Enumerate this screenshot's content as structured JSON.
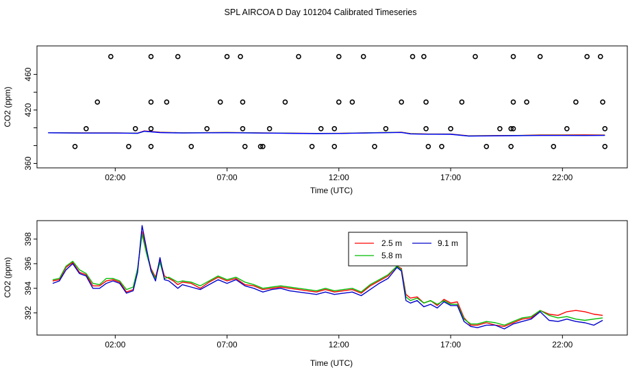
{
  "title": "SPL AIRCOA D  Day 101204  Calibrated Timeseries",
  "chart_data": [
    {
      "type": "scatter",
      "xlabel": "Time (UTC)",
      "ylabel": "CO2 (ppm)",
      "x_unit": "hours UTC",
      "xlim": [
        -1.5,
        24.9
      ],
      "ylim": [
        355,
        492
      ],
      "x_ticks": [
        2,
        7,
        12,
        17,
        22
      ],
      "x_tick_labels": [
        "02:00",
        "07:00",
        "12:00",
        "17:00",
        "22:00"
      ],
      "y_ticks": [
        360,
        380,
        400,
        420,
        440,
        460
      ],
      "y_tick_labels": [
        "360",
        "",
        "",
        "420",
        "",
        "460"
      ],
      "point_color": "#000000",
      "points": [
        [
          1.8,
          480
        ],
        [
          3.6,
          480
        ],
        [
          4.8,
          480
        ],
        [
          7.0,
          480
        ],
        [
          7.6,
          480
        ],
        [
          10.2,
          480
        ],
        [
          12.0,
          480
        ],
        [
          13.1,
          480
        ],
        [
          15.3,
          480
        ],
        [
          15.8,
          480
        ],
        [
          18.1,
          480
        ],
        [
          19.8,
          480
        ],
        [
          21.0,
          480
        ],
        [
          23.1,
          480
        ],
        [
          23.7,
          480
        ],
        [
          1.2,
          429
        ],
        [
          3.6,
          429
        ],
        [
          4.3,
          429
        ],
        [
          6.7,
          429
        ],
        [
          7.7,
          429
        ],
        [
          9.6,
          429
        ],
        [
          12.0,
          429
        ],
        [
          12.6,
          429
        ],
        [
          14.8,
          429
        ],
        [
          15.9,
          429
        ],
        [
          17.5,
          429
        ],
        [
          19.8,
          429
        ],
        [
          20.4,
          429
        ],
        [
          22.6,
          429
        ],
        [
          23.8,
          429
        ],
        [
          0.7,
          399
        ],
        [
          2.9,
          399
        ],
        [
          3.6,
          399
        ],
        [
          6.1,
          399
        ],
        [
          7.7,
          399
        ],
        [
          8.9,
          399
        ],
        [
          11.2,
          399
        ],
        [
          11.8,
          399
        ],
        [
          14.1,
          399
        ],
        [
          15.9,
          399
        ],
        [
          17.0,
          399
        ],
        [
          19.2,
          399
        ],
        [
          19.7,
          399
        ],
        [
          19.8,
          399
        ],
        [
          22.2,
          399
        ],
        [
          23.9,
          399
        ],
        [
          0.2,
          379
        ],
        [
          2.6,
          379
        ],
        [
          3.6,
          379
        ],
        [
          5.4,
          379
        ],
        [
          7.8,
          379
        ],
        [
          8.5,
          379
        ],
        [
          8.6,
          379
        ],
        [
          10.8,
          379
        ],
        [
          11.8,
          379
        ],
        [
          13.6,
          379
        ],
        [
          16.0,
          379
        ],
        [
          16.6,
          379
        ],
        [
          18.6,
          379
        ],
        [
          19.7,
          379
        ],
        [
          21.6,
          379
        ],
        [
          23.9,
          379
        ]
      ],
      "lines": [
        {
          "color": "#ff0000",
          "x": [
            -1.0,
            0.5,
            2.0,
            3.0,
            3.3,
            4.0,
            5.0,
            7.0,
            9.0,
            11.0,
            12.0,
            14.0,
            14.8,
            15.2,
            16.0,
            17.0,
            17.8,
            18.5,
            20.0,
            21.0,
            22.0,
            23.0,
            23.9
          ],
          "values": [
            394.5,
            394.3,
            394.3,
            394.0,
            396.5,
            395.0,
            394.4,
            394.8,
            394.2,
            393.7,
            393.8,
            394.7,
            395.0,
            393.5,
            393.0,
            393.0,
            391.0,
            391.2,
            391.4,
            392.0,
            392.0,
            392.1,
            391.9
          ]
        },
        {
          "color": "#00bb00",
          "x": [
            -1.0,
            0.5,
            2.0,
            3.0,
            3.3,
            4.0,
            5.0,
            7.0,
            9.0,
            11.0,
            12.0,
            14.0,
            14.8,
            15.2,
            16.0,
            17.0,
            17.8,
            18.5,
            20.0,
            21.0,
            22.0,
            23.0,
            23.9
          ],
          "values": [
            394.4,
            394.2,
            394.2,
            393.9,
            396.0,
            394.8,
            394.3,
            394.6,
            394.1,
            393.6,
            393.7,
            394.6,
            394.9,
            393.3,
            392.9,
            392.9,
            390.8,
            391.0,
            391.3,
            391.6,
            391.6,
            391.5,
            391.6
          ]
        },
        {
          "color": "#0000ff",
          "x": [
            -1.0,
            0.5,
            2.0,
            3.0,
            3.3,
            4.0,
            5.0,
            7.0,
            9.0,
            11.0,
            12.0,
            14.0,
            14.8,
            15.2,
            16.0,
            17.0,
            17.8,
            18.5,
            20.0,
            21.0,
            22.0,
            23.0,
            23.9
          ],
          "values": [
            394.4,
            394.1,
            394.1,
            393.8,
            396.2,
            394.6,
            394.2,
            394.5,
            394.0,
            393.5,
            393.6,
            394.5,
            394.8,
            393.2,
            392.8,
            392.7,
            390.7,
            390.9,
            391.2,
            391.4,
            391.4,
            391.3,
            391.5
          ]
        }
      ]
    },
    {
      "type": "line",
      "xlabel": "Time (UTC)",
      "ylabel": "CO2 (ppm)",
      "x_unit": "hours UTC",
      "xlim": [
        -1.5,
        24.9
      ],
      "ylim": [
        390.2,
        399.5
      ],
      "x_ticks": [
        2,
        7,
        12,
        17,
        22
      ],
      "x_tick_labels": [
        "02:00",
        "07:00",
        "12:00",
        "17:00",
        "22:00"
      ],
      "y_ticks": [
        392,
        394,
        396,
        398
      ],
      "y_tick_labels": [
        "392",
        "394",
        "396",
        "398"
      ],
      "legend": {
        "position": "top-center",
        "columns": 2
      },
      "x": [
        -0.8,
        -0.5,
        -0.2,
        0.1,
        0.4,
        0.7,
        1.0,
        1.3,
        1.6,
        1.9,
        2.2,
        2.5,
        2.8,
        3.0,
        3.2,
        3.4,
        3.6,
        3.8,
        4.0,
        4.2,
        4.4,
        4.6,
        4.8,
        5.0,
        5.4,
        5.8,
        6.2,
        6.6,
        7.0,
        7.4,
        7.8,
        8.2,
        8.6,
        9.0,
        9.4,
        9.8,
        10.2,
        10.6,
        11.0,
        11.4,
        11.8,
        12.2,
        12.6,
        13.0,
        13.4,
        13.8,
        14.2,
        14.6,
        14.8,
        15.0,
        15.2,
        15.5,
        15.8,
        16.1,
        16.4,
        16.7,
        17.0,
        17.3,
        17.6,
        17.9,
        18.2,
        18.6,
        19.0,
        19.4,
        19.8,
        20.2,
        20.6,
        21.0,
        21.4,
        21.8,
        22.2,
        22.6,
        23.0,
        23.4,
        23.8
      ],
      "series": [
        {
          "name": "2.5 m",
          "color": "#ff0000",
          "values": [
            394.6,
            394.7,
            395.7,
            396.1,
            395.3,
            395.1,
            394.2,
            394.2,
            394.6,
            394.7,
            394.5,
            393.7,
            393.9,
            395.5,
            398.6,
            397.0,
            395.6,
            394.9,
            396.3,
            395.0,
            394.8,
            394.6,
            394.3,
            394.5,
            394.4,
            394.0,
            394.5,
            394.9,
            394.6,
            394.8,
            394.3,
            394.2,
            393.9,
            394.0,
            394.1,
            394.0,
            393.9,
            393.8,
            393.7,
            393.9,
            393.7,
            393.8,
            393.9,
            393.6,
            394.2,
            394.6,
            395.0,
            395.8,
            395.6,
            393.5,
            393.2,
            393.3,
            392.8,
            393.0,
            392.6,
            393.1,
            392.8,
            392.9,
            391.6,
            391.0,
            391.0,
            391.2,
            391.0,
            390.9,
            391.2,
            391.5,
            391.6,
            392.2,
            391.9,
            391.8,
            392.1,
            392.2,
            392.1,
            391.9,
            391.8
          ]
        },
        {
          "name": "5.8 m",
          "color": "#00bb00",
          "values": [
            394.7,
            394.8,
            395.8,
            396.2,
            395.5,
            395.2,
            394.4,
            394.3,
            394.8,
            394.8,
            394.6,
            393.9,
            394.1,
            395.6,
            398.4,
            396.8,
            395.5,
            394.8,
            396.1,
            394.8,
            394.9,
            394.7,
            394.5,
            394.6,
            394.5,
            394.2,
            394.6,
            395.0,
            394.7,
            394.9,
            394.5,
            394.3,
            394.0,
            394.1,
            394.2,
            394.1,
            394.0,
            393.9,
            393.8,
            394.0,
            393.8,
            393.9,
            394.0,
            393.7,
            394.3,
            394.7,
            395.1,
            395.8,
            395.5,
            393.3,
            393.0,
            393.2,
            392.8,
            393.0,
            392.7,
            393.0,
            392.7,
            392.7,
            391.5,
            391.1,
            391.1,
            391.3,
            391.2,
            391.0,
            391.3,
            391.6,
            391.7,
            392.2,
            391.8,
            391.6,
            391.7,
            391.5,
            391.4,
            391.5,
            391.6
          ]
        },
        {
          "name": "9.1 m",
          "color": "#0000cc",
          "values": [
            394.4,
            394.6,
            395.5,
            396.0,
            395.2,
            395.0,
            394.0,
            394.0,
            394.4,
            394.6,
            394.4,
            393.6,
            393.8,
            395.3,
            399.1,
            397.2,
            395.4,
            394.6,
            396.5,
            394.7,
            394.6,
            394.3,
            394.0,
            394.3,
            394.1,
            393.9,
            394.3,
            394.7,
            394.4,
            394.7,
            394.2,
            394.0,
            393.7,
            393.9,
            394.0,
            393.8,
            393.7,
            393.6,
            393.5,
            393.7,
            393.5,
            393.6,
            393.7,
            393.4,
            393.9,
            394.4,
            394.8,
            395.7,
            395.4,
            393.0,
            392.8,
            393.0,
            392.5,
            392.7,
            392.4,
            392.9,
            392.6,
            392.6,
            391.3,
            390.9,
            390.8,
            391.0,
            391.0,
            390.7,
            391.1,
            391.3,
            391.5,
            392.1,
            391.4,
            391.3,
            391.5,
            391.3,
            391.2,
            391.0,
            391.4
          ]
        }
      ]
    }
  ]
}
